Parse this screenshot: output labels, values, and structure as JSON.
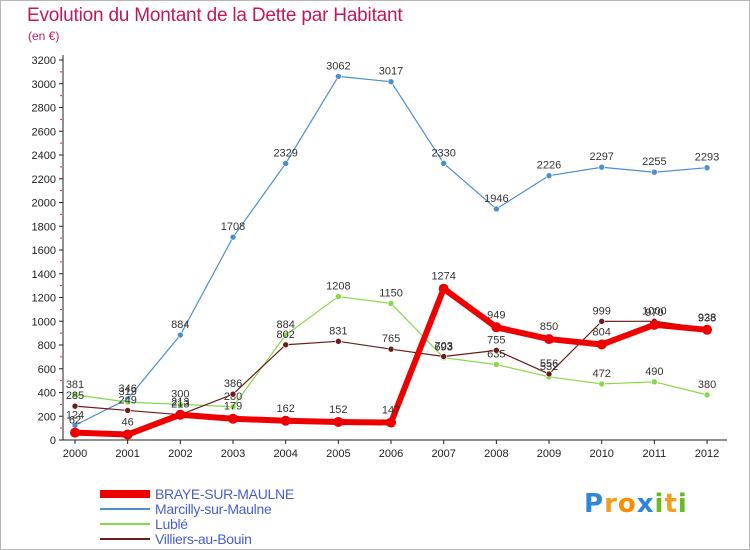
{
  "title": "Evolution du Montant de la Dette par Habitant",
  "subtitle": "(en €)",
  "logo": {
    "letters": [
      "P",
      "r",
      "o",
      "x",
      "i",
      "t",
      "i"
    ],
    "colors": [
      "#2e86d6",
      "#f0a020",
      "#ff8c00",
      "#2e86d6",
      "#66bb22",
      "#f0a020",
      "#66bb22"
    ]
  },
  "chart_data": {
    "type": "line",
    "title": "Evolution du Montant de la Dette par Habitant",
    "subtitle": "(en €)",
    "xlabel": "",
    "ylabel": "",
    "ylim": [
      0,
      3200
    ],
    "yticks": [
      0,
      200,
      400,
      600,
      800,
      1000,
      1200,
      1400,
      1600,
      1800,
      2000,
      2200,
      2400,
      2600,
      2800,
      3000,
      3200
    ],
    "grid": false,
    "legend_position": "bottom-left",
    "x": [
      2000,
      2001,
      2002,
      2003,
      2004,
      2005,
      2006,
      2007,
      2008,
      2009,
      2010,
      2011,
      2012
    ],
    "series": [
      {
        "name": "BRAYE-SUR-MAULNE",
        "color": "#ee0000",
        "values": [
          62,
          46,
          213,
          179,
          162,
          152,
          147,
          1274,
          949,
          850,
          804,
          970,
          928
        ]
      },
      {
        "name": "Marcilly-sur-Maulne",
        "color": "#4a8fce",
        "values": [
          124,
          346,
          884,
          1708,
          2329,
          3062,
          3017,
          2330,
          1946,
          2226,
          2297,
          2255,
          2293
        ]
      },
      {
        "name": "Lublé",
        "color": "#88d84a",
        "values": [
          381,
          319,
          300,
          280,
          884,
          1208,
          1150,
          693,
          635,
          532,
          472,
          490,
          380
        ]
      },
      {
        "name": "Villiers-au-Bouin",
        "color": "#6b1c1c",
        "values": [
          285,
          249,
          213,
          386,
          802,
          831,
          765,
          703,
          755,
          556,
          999,
          1000,
          938
        ]
      }
    ]
  }
}
